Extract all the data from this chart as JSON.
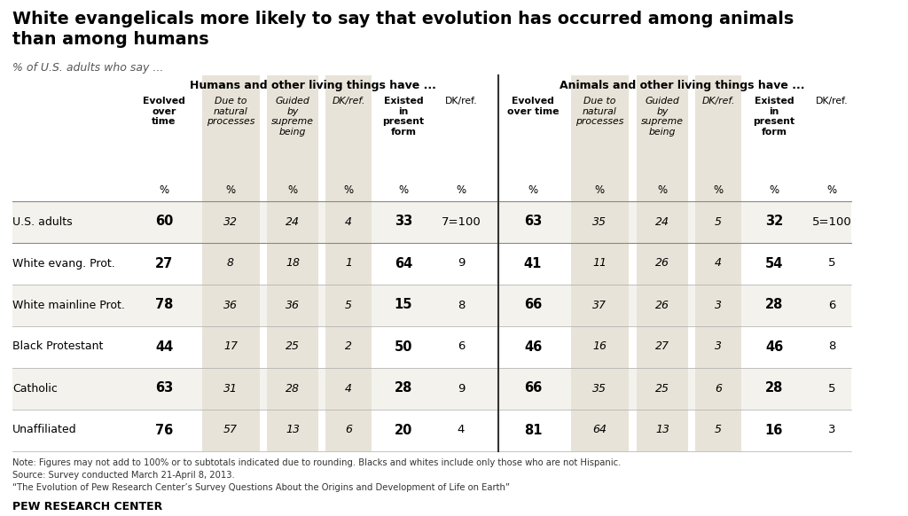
{
  "title": "White evangelicals more likely to say that evolution has occurred among animals\nthan among humans",
  "subtitle": "% of U.S. adults who say ...",
  "humans_header": "Humans and other living things have ...",
  "animals_header": "Animals and other living things have ...",
  "col_headers_h": [
    "Evolved\nover\ntime",
    "Due to\nnatural\nprocesses",
    "Guided\nby\nsupreme\nbeing",
    "DK/ref.",
    "Existed\nin\npresent\nform",
    "DK/ref."
  ],
  "col_headers_a": [
    "Evolved\nover time",
    "Due to\nnatural\nprocesses",
    "Guided\nby\nsupreme\nbeing",
    "DK/ref.",
    "Existed\nin\npresent\nform",
    "DK/ref."
  ],
  "row_labels": [
    "U.S. adults",
    "White evang. Prot.",
    "White mainline Prot.",
    "Black Protestant",
    "Catholic",
    "Unaffiliated"
  ],
  "humans_data": [
    [
      "60",
      "32",
      "24",
      "4",
      "33",
      "7=100"
    ],
    [
      "27",
      "8",
      "18",
      "1",
      "64",
      "9"
    ],
    [
      "78",
      "36",
      "36",
      "5",
      "15",
      "8"
    ],
    [
      "44",
      "17",
      "25",
      "2",
      "50",
      "6"
    ],
    [
      "63",
      "31",
      "28",
      "4",
      "28",
      "9"
    ],
    [
      "76",
      "57",
      "13",
      "6",
      "20",
      "4"
    ]
  ],
  "animals_data": [
    [
      "63",
      "35",
      "24",
      "5",
      "32",
      "5=100"
    ],
    [
      "41",
      "11",
      "26",
      "4",
      "54",
      "5"
    ],
    [
      "66",
      "37",
      "26",
      "3",
      "28",
      "6"
    ],
    [
      "46",
      "16",
      "27",
      "3",
      "46",
      "8"
    ],
    [
      "66",
      "35",
      "25",
      "6",
      "28",
      "5"
    ],
    [
      "81",
      "64",
      "13",
      "5",
      "16",
      "3"
    ]
  ],
  "bold_cols": [
    0,
    4
  ],
  "italic_cols": [
    1,
    2,
    3
  ],
  "shaded_color": "#e8e3d8",
  "bg_color": "#ffffff",
  "note_line1": "Note: Figures may not add to 100% or to subtotals indicated due to rounding. Blacks and whites include only those who are not Hispanic.",
  "note_line2": "Source: Survey conducted March 21-April 8, 2013.",
  "note_line3": "“The Evolution of Pew Research Center’s Survey Questions About the Origins and Development of Life on Earth”",
  "footer": "PEW RESEARCH CENTER"
}
